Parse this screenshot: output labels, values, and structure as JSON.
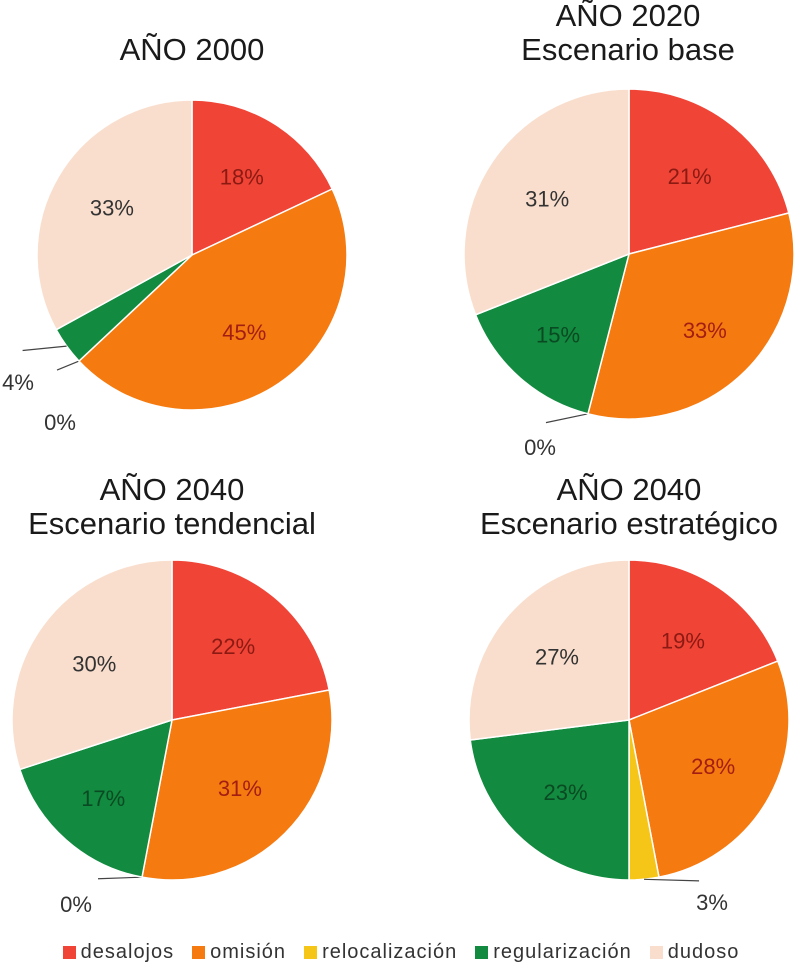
{
  "chart_data": {
    "type": "pie",
    "categories": [
      "desalojos",
      "omisión",
      "relocalización",
      "regularización",
      "dudoso"
    ],
    "colors": [
      "#f04437",
      "#f57a10",
      "#f5c518",
      "#128a3f",
      "#f9decd"
    ],
    "legend_position": "bottom",
    "charts": [
      {
        "title_lines": [
          "AÑO 2000"
        ],
        "values": [
          18,
          45,
          0,
          4,
          33
        ],
        "labels": [
          "18%",
          "45%",
          "0%",
          "4%",
          "33%"
        ]
      },
      {
        "title_lines": [
          "AÑO 2020",
          "Escenario base"
        ],
        "values": [
          21,
          33,
          0,
          15,
          31
        ],
        "labels": [
          "21%",
          "33%",
          "0%",
          "15%",
          "31%"
        ]
      },
      {
        "title_lines": [
          "AÑO 2040",
          "Escenario tendencial"
        ],
        "values": [
          22,
          31,
          0,
          17,
          30
        ],
        "labels": [
          "22%",
          "31%",
          "0%",
          "17%",
          "30%"
        ]
      },
      {
        "title_lines": [
          "AÑO 2040",
          "Escenario estratégico"
        ],
        "values": [
          19,
          28,
          3,
          23,
          27
        ],
        "labels": [
          "19%",
          "28%",
          "3%",
          "23%",
          "27%"
        ]
      }
    ]
  }
}
